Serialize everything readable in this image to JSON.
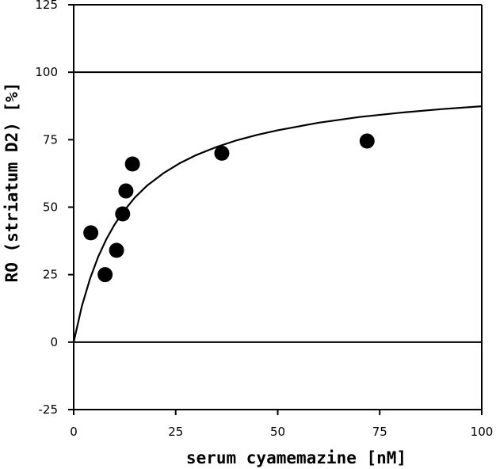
{
  "chart_data": {
    "type": "scatter",
    "xlabel": "serum cyamemazine [nM]",
    "ylabel": "RO (striatum D2) [%]",
    "xlim": [
      0,
      100
    ],
    "ylim": [
      -25,
      125
    ],
    "x_ticks": [
      0,
      25,
      50,
      75,
      100
    ],
    "y_ticks": [
      -25,
      0,
      25,
      50,
      75,
      100,
      125
    ],
    "reference_lines_y": [
      0,
      100
    ],
    "grid": false,
    "series": [
      {
        "kind": "points",
        "x": [
          4.2,
          7.7,
          10.5,
          12.0,
          12.8,
          14.4,
          36.3,
          71.9
        ],
        "y": [
          40.5,
          25.0,
          34.0,
          47.5,
          56.0,
          66.0,
          70.0,
          74.5
        ]
      },
      {
        "kind": "fit-curve",
        "x": [
          0,
          2,
          4,
          6,
          8,
          10,
          12,
          15,
          18,
          22,
          26,
          30,
          35,
          40,
          45,
          50,
          60,
          70,
          80,
          90,
          100
        ],
        "y": [
          0,
          13.3,
          23.5,
          31.6,
          38.1,
          43.5,
          48.0,
          53.6,
          58.0,
          62.6,
          66.3,
          69.3,
          72.3,
          74.8,
          76.8,
          78.5,
          81.3,
          83.4,
          85.0,
          86.3,
          87.4
        ]
      }
    ]
  }
}
